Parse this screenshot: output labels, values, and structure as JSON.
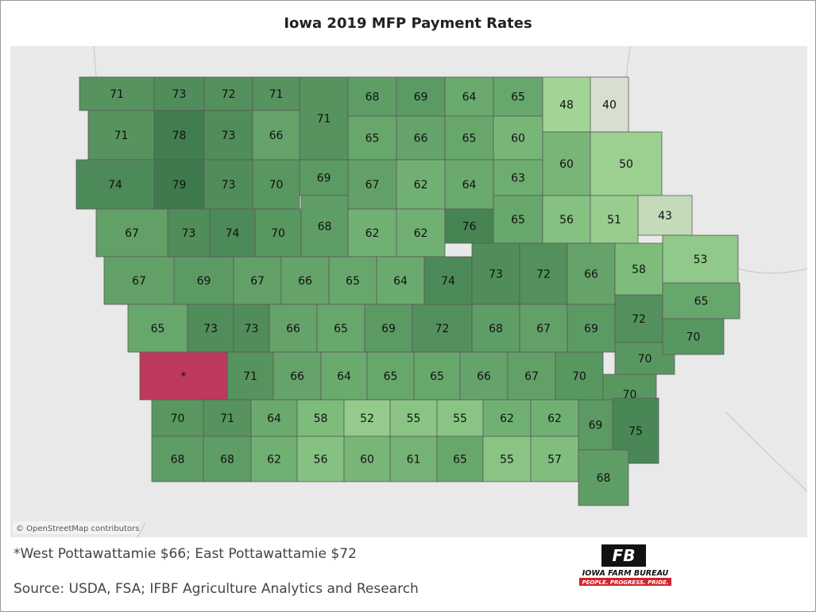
{
  "map": {
    "title": "Iowa 2019 MFP Payment Rates",
    "attribution": "© OpenStreetMap contributors",
    "counties": [
      {
        "label": 71
      },
      {
        "label": 73
      },
      {
        "label": 72
      },
      {
        "label": 71
      },
      {
        "label": 71
      },
      {
        "label": 68
      },
      {
        "label": 69
      },
      {
        "label": 64
      },
      {
        "label": 65
      },
      {
        "label": 48
      },
      {
        "label": 40
      },
      {
        "label": 71
      },
      {
        "label": 78
      },
      {
        "label": 73
      },
      {
        "label": 66
      },
      {
        "label": 65
      },
      {
        "label": 66
      },
      {
        "label": 65
      },
      {
        "label": 60
      },
      {
        "label": 74
      },
      {
        "label": 79
      },
      {
        "label": 73
      },
      {
        "label": 70
      },
      {
        "label": 69
      },
      {
        "label": 67
      },
      {
        "label": 62
      },
      {
        "label": 64
      },
      {
        "label": 63
      },
      {
        "label": 60
      },
      {
        "label": 50
      },
      {
        "label": 67
      },
      {
        "label": 73
      },
      {
        "label": 74
      },
      {
        "label": 70
      },
      {
        "label": 68
      },
      {
        "label": 62
      },
      {
        "label": 62
      },
      {
        "label": 76
      },
      {
        "label": 65
      },
      {
        "label": 56
      },
      {
        "label": 51
      },
      {
        "label": 43
      },
      {
        "label": 67
      },
      {
        "label": 69
      },
      {
        "label": 67
      },
      {
        "label": 66
      },
      {
        "label": 65
      },
      {
        "label": 64
      },
      {
        "label": 74
      },
      {
        "label": 73
      },
      {
        "label": 72
      },
      {
        "label": 66
      },
      {
        "label": 58
      },
      {
        "label": 53
      },
      {
        "label": 65
      },
      {
        "label": 73
      },
      {
        "label": 73
      },
      {
        "label": 66
      },
      {
        "label": 65
      },
      {
        "label": 69
      },
      {
        "label": 72
      },
      {
        "label": 68
      },
      {
        "label": 67
      },
      {
        "label": 69
      },
      {
        "label": 72
      },
      {
        "label": 65
      },
      {
        "label": "*"
      },
      {
        "label": 71
      },
      {
        "label": 66
      },
      {
        "label": 64
      },
      {
        "label": 65
      },
      {
        "label": 65
      },
      {
        "label": 66
      },
      {
        "label": 67
      },
      {
        "label": 70
      },
      {
        "label": 70
      },
      {
        "label": 70
      },
      {
        "label": 70
      },
      {
        "label": 70
      },
      {
        "label": 71
      },
      {
        "label": 64
      },
      {
        "label": 58
      },
      {
        "label": 52
      },
      {
        "label": 55
      },
      {
        "label": 55
      },
      {
        "label": 62
      },
      {
        "label": 62
      },
      {
        "label": 69
      },
      {
        "label": 75
      },
      {
        "label": 68
      },
      {
        "label": 68
      },
      {
        "label": 62
      },
      {
        "label": 56
      },
      {
        "label": 60
      },
      {
        "label": 61
      },
      {
        "label": 65
      },
      {
        "label": 55
      },
      {
        "label": 57
      },
      {
        "label": 68
      }
    ],
    "note": "*West Pottawattamie $66; East Pottawattamie $72",
    "source": "Source: USDA, FSA; IFBF Agriculture Analytics and Research",
    "logo": {
      "name": "IOWA FARM BUREAU",
      "tagline": "PEOPLE. PROGRESS. PRIDE."
    }
  }
}
